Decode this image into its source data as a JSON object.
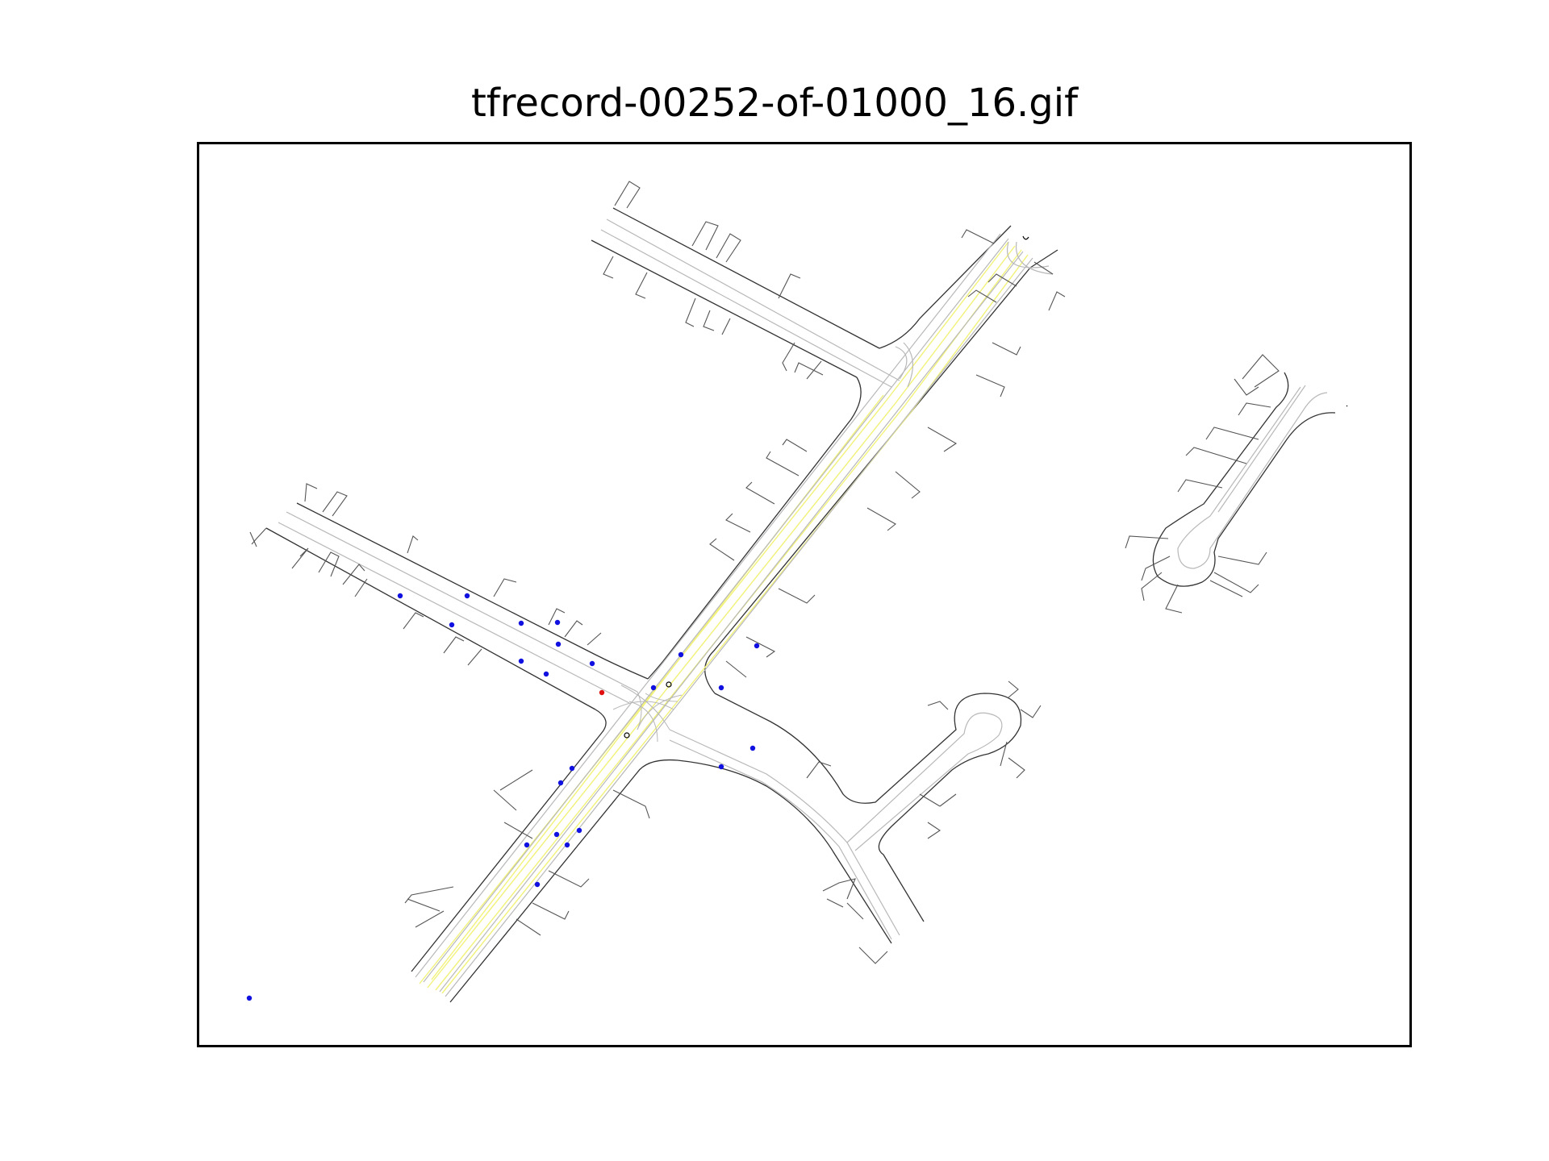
{
  "figure": {
    "title": "tfrecord-00252-of-01000_16.gif"
  },
  "map": {
    "colors": {
      "background": "#ffffff",
      "road_edge": "#333333",
      "lane_center": "#b8b8b8",
      "road_line_yellow": "#f2f27a",
      "driveway": "#555555",
      "agent": "#1010e0",
      "ego_agent": "#e01010",
      "stop_marker": "#000000"
    },
    "agents": {
      "other_count": 26,
      "ego_count": 1
    }
  }
}
